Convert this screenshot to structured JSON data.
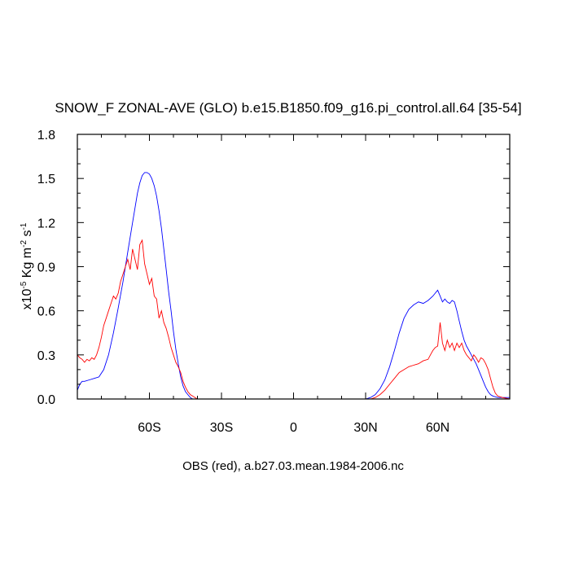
{
  "chart_data": {
    "type": "line",
    "title": "SNOW_F ZONAL-AVE (GLO) b.e15.B1850.f09_g16.pi_control.all.64 [35-54]",
    "xlabel": "OBS (red), a.b27.03.mean.1984-2006.nc",
    "ylabel": {
      "prefix": "x10",
      "exponent": "-5",
      "unit1": " Kg m",
      "unit1_exp": "-2",
      "unit2": " s",
      "unit2_exp": "-1"
    },
    "xlim": [
      -90,
      90
    ],
    "ylim": [
      0,
      1.8
    ],
    "x_ticks": [
      {
        "value": -60,
        "label": "60S"
      },
      {
        "value": -30,
        "label": "30S"
      },
      {
        "value": 0,
        "label": "0"
      },
      {
        "value": 30,
        "label": "30N"
      },
      {
        "value": 60,
        "label": "60N"
      }
    ],
    "x_minor_step": 10,
    "y_ticks": [
      {
        "value": 0.0,
        "label": "0.0"
      },
      {
        "value": 0.3,
        "label": "0.3"
      },
      {
        "value": 0.6,
        "label": "0.6"
      },
      {
        "value": 0.9,
        "label": "0.9"
      },
      {
        "value": 1.2,
        "label": "1.2"
      },
      {
        "value": 1.5,
        "label": "1.5"
      },
      {
        "value": 1.8,
        "label": "1.8"
      }
    ],
    "y_minor_step": 0.1,
    "series": [
      {
        "color": "#0000ff",
        "x": [
          -90,
          -89,
          -88,
          -87,
          -85,
          -83,
          -81,
          -79,
          -77,
          -75,
          -73,
          -71,
          -69,
          -67,
          -66,
          -65,
          -64,
          -63,
          -62,
          -61,
          -60,
          -59,
          -58,
          -57,
          -56,
          -55,
          -54,
          -53,
          -52,
          -51,
          -50,
          -49,
          -48,
          -47,
          -46,
          -45,
          -44,
          -43,
          -42,
          -40,
          -35,
          -30,
          -20,
          -10,
          0,
          10,
          20,
          25,
          28,
          30,
          32,
          34,
          36,
          38,
          40,
          42,
          44,
          46,
          48,
          50,
          52,
          54,
          56,
          58,
          59,
          60,
          61,
          62,
          63,
          64,
          65,
          66,
          67,
          68,
          69,
          70,
          71,
          72,
          73,
          74,
          75,
          76,
          77,
          78,
          79,
          80,
          81,
          82,
          83,
          85,
          87,
          90
        ],
        "y": [
          0.06,
          0.1,
          0.12,
          0.12,
          0.13,
          0.14,
          0.15,
          0.2,
          0.3,
          0.45,
          0.62,
          0.8,
          1.0,
          1.2,
          1.3,
          1.4,
          1.47,
          1.52,
          1.54,
          1.54,
          1.53,
          1.5,
          1.45,
          1.38,
          1.28,
          1.16,
          1.02,
          0.88,
          0.73,
          0.6,
          0.46,
          0.34,
          0.24,
          0.15,
          0.09,
          0.05,
          0.03,
          0.01,
          0.0,
          0.0,
          0.0,
          0.0,
          0.0,
          0.0,
          0.0,
          0.0,
          0.0,
          0.0,
          0.0,
          0.0,
          0.01,
          0.03,
          0.07,
          0.13,
          0.22,
          0.33,
          0.45,
          0.55,
          0.61,
          0.64,
          0.66,
          0.65,
          0.67,
          0.7,
          0.72,
          0.74,
          0.7,
          0.66,
          0.68,
          0.66,
          0.65,
          0.67,
          0.66,
          0.6,
          0.53,
          0.46,
          0.4,
          0.36,
          0.33,
          0.3,
          0.27,
          0.24,
          0.2,
          0.16,
          0.12,
          0.08,
          0.05,
          0.03,
          0.02,
          0.01,
          0.01,
          0.01
        ]
      },
      {
        "name": "OBS",
        "color": "#ff0000",
        "x": [
          -90,
          -89,
          -88,
          -87,
          -86,
          -85,
          -84,
          -83,
          -82,
          -81,
          -80,
          -79,
          -78,
          -77,
          -76,
          -75,
          -74,
          -73,
          -72,
          -71,
          -70,
          -69,
          -68,
          -67,
          -66,
          -65,
          -64,
          -63,
          -62,
          -61,
          -60,
          -59,
          -58,
          -57,
          -56,
          -55,
          -54,
          -53,
          -52,
          -51,
          -50,
          -49,
          -48,
          -47,
          -46,
          -45,
          -44,
          -43,
          -42,
          -41,
          -40,
          -35,
          -30,
          -20,
          -10,
          0,
          10,
          20,
          25,
          28,
          30,
          32,
          34,
          36,
          38,
          40,
          42,
          44,
          46,
          48,
          50,
          52,
          54,
          56,
          57,
          58,
          59,
          60,
          61,
          62,
          63,
          64,
          65,
          66,
          67,
          68,
          69,
          70,
          71,
          72,
          73,
          74,
          75,
          76,
          77,
          78,
          79,
          80,
          81,
          82,
          83,
          84,
          85,
          87,
          90
        ],
        "y": [
          0.3,
          0.28,
          0.27,
          0.25,
          0.27,
          0.26,
          0.28,
          0.27,
          0.3,
          0.35,
          0.42,
          0.5,
          0.55,
          0.6,
          0.65,
          0.7,
          0.68,
          0.72,
          0.8,
          0.85,
          0.9,
          0.95,
          0.88,
          1.02,
          0.95,
          0.88,
          1.05,
          1.08,
          0.92,
          0.85,
          0.78,
          0.82,
          0.7,
          0.68,
          0.55,
          0.6,
          0.52,
          0.48,
          0.42,
          0.35,
          0.3,
          0.25,
          0.22,
          0.18,
          0.12,
          0.08,
          0.05,
          0.03,
          0.02,
          0.01,
          0.0,
          0.0,
          0.0,
          0.0,
          0.0,
          0.0,
          0.0,
          0.0,
          0.0,
          0.0,
          0.0,
          0.0,
          0.01,
          0.03,
          0.06,
          0.1,
          0.14,
          0.18,
          0.2,
          0.22,
          0.23,
          0.24,
          0.26,
          0.27,
          0.3,
          0.33,
          0.35,
          0.36,
          0.52,
          0.38,
          0.33,
          0.4,
          0.35,
          0.38,
          0.33,
          0.38,
          0.35,
          0.38,
          0.33,
          0.3,
          0.28,
          0.26,
          0.3,
          0.28,
          0.25,
          0.28,
          0.27,
          0.24,
          0.2,
          0.14,
          0.08,
          0.04,
          0.02,
          0.01,
          0.0
        ]
      }
    ]
  }
}
